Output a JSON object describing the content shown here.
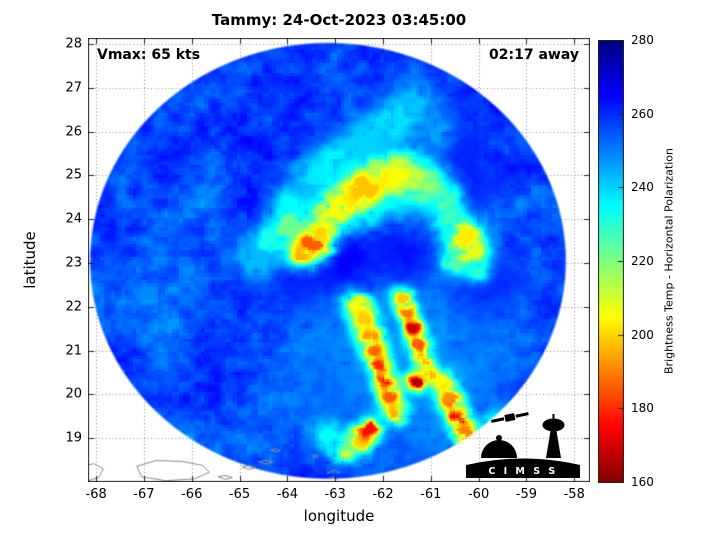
{
  "title": "Tammy: 24-Oct-2023 03:45:00",
  "annotations": {
    "vmax": "Vmax: 65 kts",
    "countdown": "02:17 away"
  },
  "axes": {
    "xlabel": "longitude",
    "ylabel": "latitude"
  },
  "colorbar": {
    "label": "Brightness Temp - Horizontal Polarization"
  },
  "logo": {
    "text": "C I M S S"
  },
  "chart_data": {
    "type": "heatmap",
    "title": "Tammy: 24-Oct-2023 03:45:00",
    "xlabel": "longitude",
    "ylabel": "latitude",
    "xlim": [
      -68.17,
      -57.67
    ],
    "ylim": [
      18.0,
      28.14
    ],
    "xticks": [
      -68,
      -67,
      -66,
      -65,
      -64,
      -63,
      -62,
      -61,
      -60,
      -59,
      -58
    ],
    "yticks": [
      19,
      20,
      21,
      22,
      23,
      24,
      25,
      26,
      27,
      28
    ],
    "grid": true,
    "colorbar": {
      "min": 160,
      "max": 280,
      "ticks": [
        160,
        180,
        200,
        220,
        240,
        260,
        280
      ],
      "colormap": "jet reversed (280 K = dark blue, 160 K = dark red)",
      "label": "Brightness Temp - Horizontal Polarization"
    },
    "swath": {
      "center_lon": -63.15,
      "center_lat": 23.05,
      "radius_deg": 5.0,
      "background_temp_k": 256
    },
    "storm_center": {
      "lon": -63.1,
      "lat": 23.2
    },
    "warm_features": [
      [
        -63.1,
        23.22,
        0.42,
        275
      ],
      [
        -62.8,
        23.0,
        0.35,
        272
      ],
      [
        -63.38,
        23.02,
        0.28,
        270
      ],
      [
        -62.56,
        22.72,
        0.3,
        268
      ],
      [
        -62.27,
        22.4,
        0.3,
        266
      ],
      [
        -61.78,
        23.3,
        0.4,
        267
      ],
      [
        -61.54,
        22.85,
        0.35,
        266
      ],
      [
        -61.96,
        23.75,
        0.32,
        266
      ],
      [
        -62.7,
        23.92,
        0.26,
        265
      ],
      [
        -60.6,
        25.6,
        0.5,
        263
      ],
      [
        -59.8,
        22.5,
        0.5,
        262
      ],
      [
        -63.6,
        22.6,
        0.4,
        263
      ],
      [
        -60.2,
        24.6,
        0.4,
        262
      ]
    ],
    "cold_cells": [
      [
        -63.5,
        23.42,
        0.26,
        186
      ],
      [
        -63.66,
        23.25,
        0.22,
        196
      ],
      [
        -63.32,
        23.62,
        0.24,
        200
      ],
      [
        -63.1,
        24.1,
        0.28,
        207
      ],
      [
        -62.75,
        24.45,
        0.3,
        206
      ],
      [
        -62.4,
        24.72,
        0.3,
        198
      ],
      [
        -62.05,
        24.92,
        0.3,
        203
      ],
      [
        -61.7,
        25.02,
        0.3,
        206
      ],
      [
        -61.35,
        24.95,
        0.28,
        212
      ],
      [
        -61.0,
        24.72,
        0.28,
        218
      ],
      [
        -60.7,
        24.42,
        0.26,
        226
      ],
      [
        -62.5,
        24.6,
        0.55,
        232
      ],
      [
        -61.6,
        24.85,
        0.5,
        235
      ],
      [
        -63.95,
        23.8,
        0.3,
        222
      ],
      [
        -64.3,
        23.5,
        0.3,
        232
      ],
      [
        -64.6,
        23.1,
        0.35,
        243
      ],
      [
        -63.9,
        24.3,
        0.3,
        235
      ],
      [
        -63.5,
        24.9,
        0.3,
        238
      ],
      [
        -63.0,
        25.3,
        0.3,
        236
      ],
      [
        -62.6,
        25.6,
        0.3,
        240
      ],
      [
        -60.28,
        23.58,
        0.26,
        203
      ],
      [
        -60.15,
        23.25,
        0.24,
        208
      ],
      [
        -60.5,
        23.0,
        0.22,
        225
      ],
      [
        -60.55,
        23.95,
        0.24,
        228
      ],
      [
        -60.05,
        22.85,
        0.2,
        230
      ],
      [
        -61.75,
        26.25,
        0.35,
        238
      ],
      [
        -61.35,
        26.6,
        0.3,
        242
      ],
      [
        -62.25,
        25.85,
        0.3,
        240
      ],
      [
        -60.9,
        26.0,
        0.3,
        246
      ],
      [
        -61.6,
        20.9,
        1.1,
        247
      ],
      [
        -62.3,
        21.0,
        0.8,
        249
      ],
      [
        -60.9,
        19.8,
        0.8,
        248
      ],
      [
        -62.52,
        22.05,
        0.2,
        208
      ],
      [
        -62.4,
        21.7,
        0.18,
        200
      ],
      [
        -62.28,
        21.35,
        0.18,
        194
      ],
      [
        -62.17,
        21.0,
        0.16,
        188
      ],
      [
        -62.06,
        20.65,
        0.16,
        180
      ],
      [
        -61.96,
        20.3,
        0.15,
        172
      ],
      [
        -61.86,
        19.95,
        0.16,
        186
      ],
      [
        -61.76,
        19.6,
        0.18,
        196
      ],
      [
        -61.6,
        22.2,
        0.16,
        200
      ],
      [
        -61.48,
        21.85,
        0.15,
        190
      ],
      [
        -61.37,
        21.5,
        0.14,
        168
      ],
      [
        -61.26,
        21.15,
        0.15,
        186
      ],
      [
        -61.16,
        20.8,
        0.15,
        192
      ],
      [
        -61.32,
        20.28,
        0.14,
        166
      ],
      [
        -61.05,
        20.42,
        0.15,
        196
      ],
      [
        -60.77,
        20.3,
        0.18,
        206
      ],
      [
        -60.6,
        19.9,
        0.18,
        192
      ],
      [
        -60.43,
        19.48,
        0.16,
        170
      ],
      [
        -60.26,
        19.1,
        0.18,
        190
      ],
      [
        -60.05,
        18.8,
        0.18,
        202
      ],
      [
        -59.85,
        18.55,
        0.2,
        215
      ],
      [
        -62.48,
        18.96,
        0.2,
        202
      ],
      [
        -62.8,
        18.7,
        0.2,
        212
      ],
      [
        -62.3,
        19.2,
        0.16,
        176
      ],
      [
        -63.2,
        19.1,
        0.25,
        235
      ],
      [
        -59.55,
        19.2,
        0.25,
        205
      ],
      [
        -59.3,
        18.9,
        0.25,
        220
      ]
    ],
    "coastlines": [
      [
        [
          -68.45,
          18.1
        ],
        [
          -68.3,
          18.35
        ],
        [
          -68.05,
          18.42
        ],
        [
          -67.85,
          18.3
        ],
        [
          -67.95,
          18.1
        ],
        [
          -68.2,
          18.02
        ],
        [
          -68.45,
          18.1
        ]
      ],
      [
        [
          -67.15,
          18.36
        ],
        [
          -66.75,
          18.49
        ],
        [
          -66.2,
          18.47
        ],
        [
          -65.78,
          18.38
        ],
        [
          -65.63,
          18.22
        ],
        [
          -65.95,
          18.07
        ],
        [
          -66.55,
          18.03
        ],
        [
          -67.05,
          18.12
        ],
        [
          -67.15,
          18.36
        ]
      ],
      [
        [
          -65.45,
          18.12
        ],
        [
          -65.3,
          18.15
        ],
        [
          -65.15,
          18.1
        ],
        [
          -65.3,
          18.06
        ],
        [
          -65.45,
          18.12
        ]
      ],
      [
        [
          -64.95,
          18.34
        ],
        [
          -64.8,
          18.38
        ],
        [
          -64.65,
          18.33
        ],
        [
          -64.8,
          18.29
        ],
        [
          -64.95,
          18.34
        ]
      ],
      [
        [
          -64.6,
          18.45
        ],
        [
          -64.45,
          18.5
        ],
        [
          -64.3,
          18.46
        ],
        [
          -64.45,
          18.41
        ],
        [
          -64.6,
          18.45
        ]
      ],
      [
        [
          -64.35,
          18.73
        ],
        [
          -64.25,
          18.76
        ],
        [
          -64.15,
          18.72
        ],
        [
          -64.25,
          18.69
        ],
        [
          -64.35,
          18.73
        ]
      ],
      [
        [
          -63.17,
          18.2
        ],
        [
          -63.0,
          18.27
        ],
        [
          -62.92,
          18.21
        ]
      ],
      [
        [
          -63.15,
          18.08
        ],
        [
          -63.02,
          18.12
        ],
        [
          -62.95,
          18.05
        ]
      ],
      [
        [
          -63.47,
          18.59
        ],
        [
          -63.4,
          18.62
        ],
        [
          -63.36,
          18.58
        ],
        [
          -63.43,
          18.55
        ],
        [
          -63.47,
          18.59
        ]
      ]
    ]
  }
}
